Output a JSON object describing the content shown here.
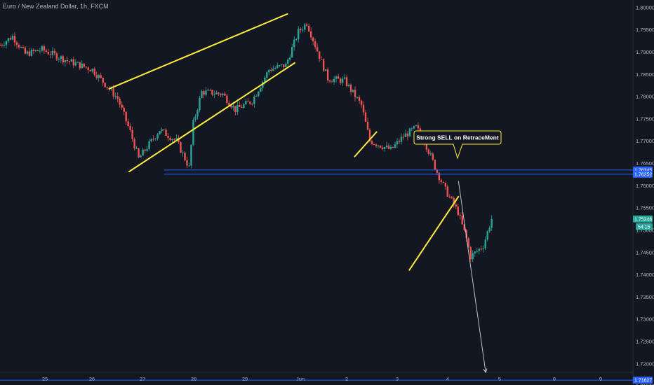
{
  "header": {
    "title": "Euro / New Zealand Dollar, 1h, FXCM"
  },
  "chart_data": {
    "type": "candlestick",
    "symbol": "Euro / New Zealand Dollar",
    "timeframe": "1h",
    "source": "FXCM",
    "ylim": [
      1.7155,
      1.801
    ],
    "y_ticks": [
      1.8,
      1.795,
      1.79,
      1.785,
      1.78,
      1.775,
      1.77,
      1.765,
      1.76,
      1.755,
      1.75,
      1.745,
      1.74,
      1.735,
      1.73,
      1.725,
      1.72,
      1.715
    ],
    "y_tick_labels": [
      "1.80000",
      "1.79500",
      "1.79000",
      "1.78500",
      "1.78000",
      "1.77500",
      "1.77000",
      "1.76500",
      "1.76000",
      "1.75500",
      "1.75000",
      "1.74500",
      "1.74000",
      "1.73500",
      "1.73000",
      "1.72500",
      "1.72000",
      "1.71500"
    ],
    "x_ticks": [
      "25",
      "26",
      "27",
      "28",
      "29",
      "Jun",
      "2",
      "3",
      "4",
      "5",
      "8",
      "9"
    ],
    "close_path": [
      [
        0,
        1.7915
      ],
      [
        0.3,
        1.7935
      ],
      [
        0.6,
        1.7895
      ],
      [
        1.0,
        1.7905
      ],
      [
        1.6,
        1.788
      ],
      [
        2.2,
        1.786
      ],
      [
        2.8,
        1.7795
      ],
      [
        3.1,
        1.772
      ],
      [
        3.3,
        1.766
      ],
      [
        3.8,
        1.7725
      ],
      [
        4.2,
        1.77
      ],
      [
        4.5,
        1.764
      ],
      [
        4.6,
        1.774
      ],
      [
        4.8,
        1.781
      ],
      [
        5.3,
        1.7805
      ],
      [
        5.6,
        1.777
      ],
      [
        6.0,
        1.779
      ],
      [
        6.4,
        1.786
      ],
      [
        6.8,
        1.787
      ],
      [
        7.1,
        1.7945
      ],
      [
        7.3,
        1.7965
      ],
      [
        7.6,
        1.789
      ],
      [
        7.8,
        1.784
      ],
      [
        8.2,
        1.7835
      ],
      [
        8.6,
        1.778
      ],
      [
        8.8,
        1.77
      ],
      [
        9.3,
        1.768
      ],
      [
        9.6,
        1.771
      ],
      [
        9.9,
        1.773
      ],
      [
        10.1,
        1.77
      ],
      [
        10.4,
        1.763
      ],
      [
        10.6,
        1.759
      ],
      [
        10.9,
        1.754
      ],
      [
        11.1,
        1.748
      ],
      [
        11.2,
        1.744
      ],
      [
        11.5,
        1.7465
      ],
      [
        11.7,
        1.7525
      ]
    ],
    "last_price": "1.75246",
    "countdown": "54:15",
    "horizontal_lines": [
      {
        "value": 1.76345,
        "label": "1.76345"
      },
      {
        "value": 1.76252,
        "label": "1.76252"
      },
      {
        "value": 1.71627,
        "label": "1.71627"
      }
    ],
    "trendlines": [
      {
        "from": [
          3.0,
          1.7817
        ],
        "to": [
          7.9,
          1.7985
        ]
      },
      {
        "from": [
          3.55,
          1.7631
        ],
        "to": [
          8.1,
          1.7875
        ]
      },
      {
        "from": [
          9.75,
          1.7665
        ],
        "to": [
          10.35,
          1.772
        ]
      },
      {
        "from": [
          11.25,
          1.741
        ],
        "to": [
          12.6,
          1.7575
        ]
      }
    ],
    "projection_arrow": {
      "from": [
        12.6,
        1.761
      ],
      "to": [
        13.35,
        1.718
      ]
    },
    "annotations": [
      {
        "text": "Strong SELL on RetraceMent"
      }
    ],
    "colors": {
      "up": "#26a69a",
      "down": "#ef5350",
      "trendline": "#ffeb3b",
      "hline": "#2962ff",
      "background": "#131722"
    }
  }
}
